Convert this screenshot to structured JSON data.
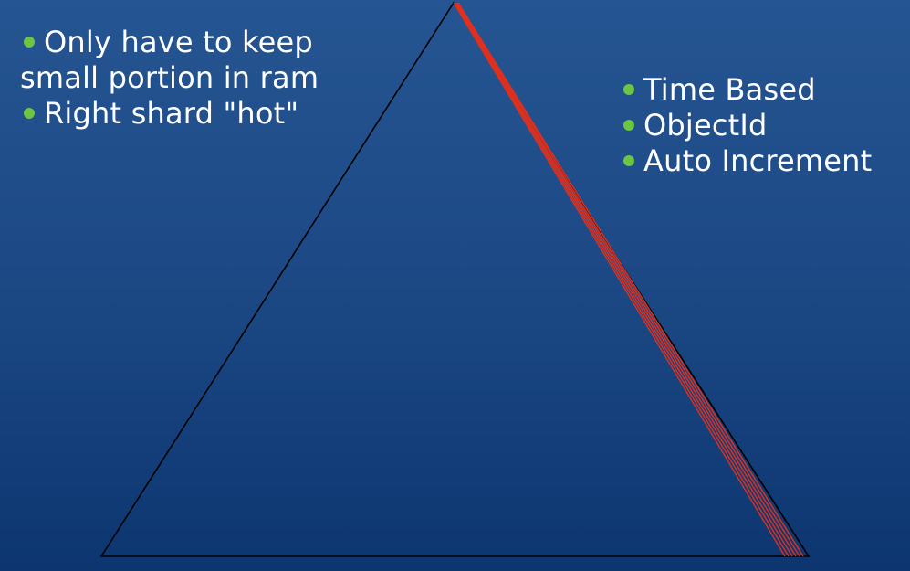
{
  "left_bullets": [
    {
      "line1": "Only have to keep",
      "line2": "small portion in ram"
    },
    {
      "line1": "Right shard \"hot\""
    }
  ],
  "right_bullets": [
    {
      "text": "Time Based"
    },
    {
      "text": "ObjectId"
    },
    {
      "text": "Auto Increment"
    }
  ],
  "colors": {
    "bullet": "#6cc644",
    "triangle_outline": "#000000",
    "hot_edge": "#e0301e"
  }
}
